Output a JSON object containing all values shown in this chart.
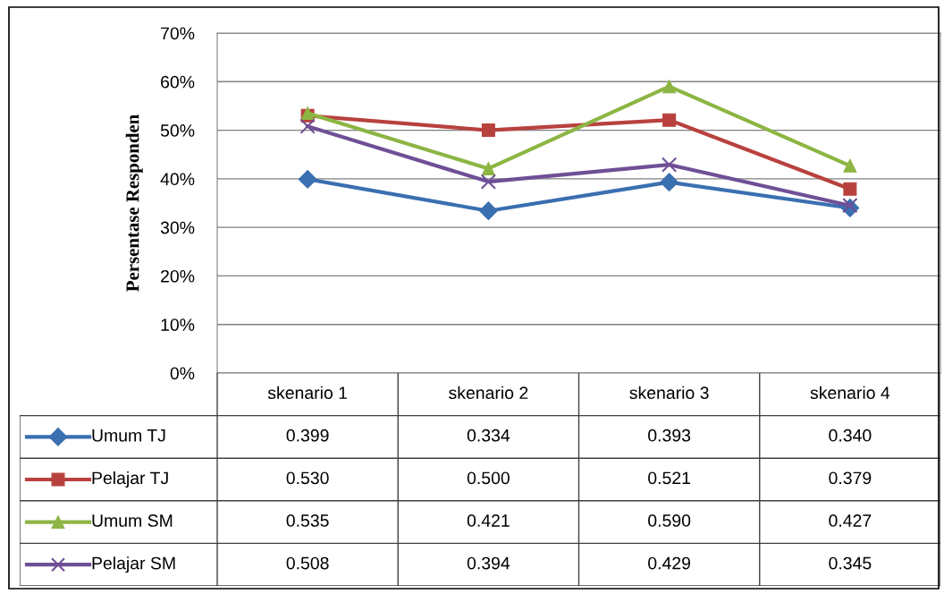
{
  "chart_data": {
    "type": "line",
    "ylabel": "Persentase Responden",
    "categories": [
      "skenario 1",
      "skenario 2",
      "skenario 3",
      "skenario 4"
    ],
    "series": [
      {
        "name": "Umum TJ",
        "color": "#3a6fb0",
        "marker": "diamond",
        "values": [
          0.399,
          0.334,
          0.393,
          0.34
        ],
        "value_labels": [
          "0.399",
          "0.334",
          "0.393",
          "0.340"
        ]
      },
      {
        "name": "Pelajar TJ",
        "color": "#b8413e",
        "marker": "square",
        "values": [
          0.53,
          0.5,
          0.521,
          0.379
        ],
        "value_labels": [
          "0.530",
          "0.500",
          "0.521",
          "0.379"
        ]
      },
      {
        "name": "Umum SM",
        "color": "#8db543",
        "marker": "triangle",
        "values": [
          0.535,
          0.421,
          0.59,
          0.427
        ],
        "value_labels": [
          "0.535",
          "0.421",
          "0.590",
          "0.427"
        ]
      },
      {
        "name": "Pelajar SM",
        "color": "#6f4f96",
        "marker": "cross",
        "values": [
          0.508,
          0.394,
          0.429,
          0.345
        ],
        "value_labels": [
          "0.508",
          "0.394",
          "0.429",
          "0.345"
        ]
      }
    ],
    "ylim": [
      0,
      0.7
    ],
    "yticks": [
      {
        "value": 0,
        "label": "0%"
      },
      {
        "value": 0.1,
        "label": "10%"
      },
      {
        "value": 0.2,
        "label": "20%"
      },
      {
        "value": 0.3,
        "label": "30%"
      },
      {
        "value": 0.4,
        "label": "40%"
      },
      {
        "value": 0.5,
        "label": "50%"
      },
      {
        "value": 0.6,
        "label": "60%"
      },
      {
        "value": 0.7,
        "label": "70%"
      }
    ],
    "grid": "y",
    "legend": "bottom left"
  }
}
